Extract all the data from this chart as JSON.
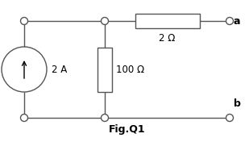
{
  "fig_label": "Fig.Q1",
  "current_source_label": "2 A",
  "r_parallel_label": "100 Ω",
  "r_series_label": "2 Ω",
  "terminal_a": "a",
  "terminal_b": "b",
  "line_color": "#555555",
  "component_color": "#000000",
  "bg_color": "#ffffff",
  "figsize": [
    3.09,
    1.76
  ],
  "dpi": 100
}
